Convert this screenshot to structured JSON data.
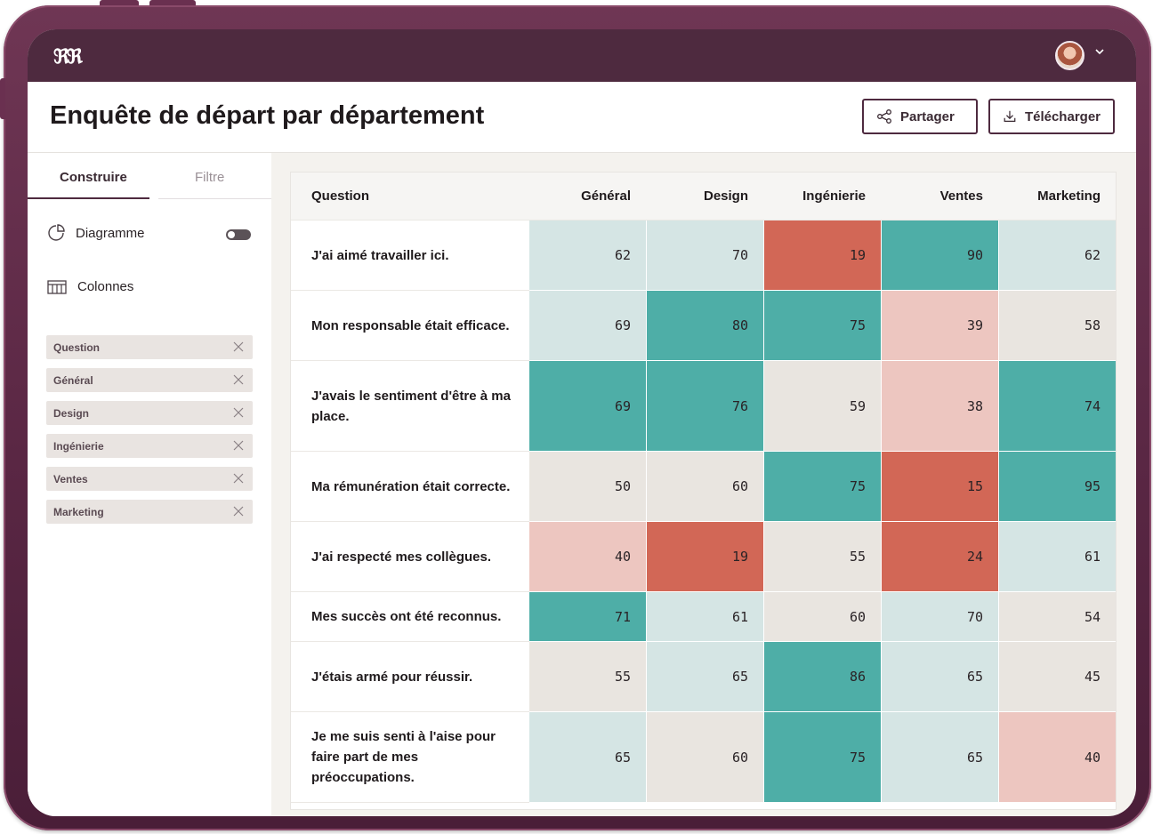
{
  "app": {
    "logo_text": "ℜℜ",
    "page_title": "Enquête de départ par département"
  },
  "header": {
    "share_label": "Partager",
    "download_label": "Télécharger"
  },
  "sidebar": {
    "tabs": [
      {
        "label": "Construire",
        "active": true
      },
      {
        "label": "Filtre",
        "active": false
      }
    ],
    "chart_label": "Diagramme",
    "columns_label": "Colonnes",
    "chips": [
      "Question",
      "Général",
      "Design",
      "Ingénierie",
      "Ventes",
      "Marketing"
    ]
  },
  "table": {
    "headers": [
      "Question",
      "Général",
      "Design",
      "Ingénierie",
      "Ventes",
      "Marketing"
    ],
    "rows": [
      {
        "question": "J'ai aimé travailler ici.",
        "values": [
          62,
          70,
          19,
          90,
          62
        ]
      },
      {
        "question": "Mon responsable était efficace.",
        "values": [
          69,
          80,
          75,
          39,
          58
        ]
      },
      {
        "question": "J'avais le sentiment d'être à ma place.",
        "values": [
          69,
          76,
          59,
          38,
          74
        ]
      },
      {
        "question": "Ma rémunération était correcte.",
        "values": [
          50,
          60,
          75,
          15,
          95
        ]
      },
      {
        "question": "J'ai respecté mes collègues.",
        "values": [
          40,
          19,
          55,
          24,
          61
        ]
      },
      {
        "question": "Mes succès ont été reconnus.",
        "values": [
          71,
          61,
          60,
          70,
          54
        ]
      },
      {
        "question": "J'étais armé pour réussir.",
        "values": [
          55,
          65,
          86,
          65,
          45
        ]
      },
      {
        "question": "Je me suis senti à l'aise pour faire part de mes préoccupations.",
        "values": [
          65,
          60,
          75,
          65,
          40
        ]
      }
    ],
    "cell_levels": [
      [
        "light",
        "light",
        "red",
        "teal",
        "light"
      ],
      [
        "light",
        "teal",
        "teal",
        "pink",
        "beige"
      ],
      [
        "teal",
        "teal",
        "beige",
        "pink",
        "teal"
      ],
      [
        "beige",
        "beige",
        "teal",
        "red",
        "teal"
      ],
      [
        "pink",
        "red",
        "beige",
        "red",
        "light"
      ],
      [
        "teal",
        "light",
        "beige",
        "light",
        "beige"
      ],
      [
        "beige",
        "light",
        "teal",
        "light",
        "beige"
      ],
      [
        "light",
        "beige",
        "teal",
        "light",
        "pink"
      ]
    ]
  },
  "colors": {
    "frame": "#5a2744",
    "topbar": "#4e2a3f",
    "teal": "#4eaea7",
    "light": "#d5e5e4",
    "beige": "#e9e5e0",
    "pink": "#edc6c0",
    "red": "#d26756"
  }
}
